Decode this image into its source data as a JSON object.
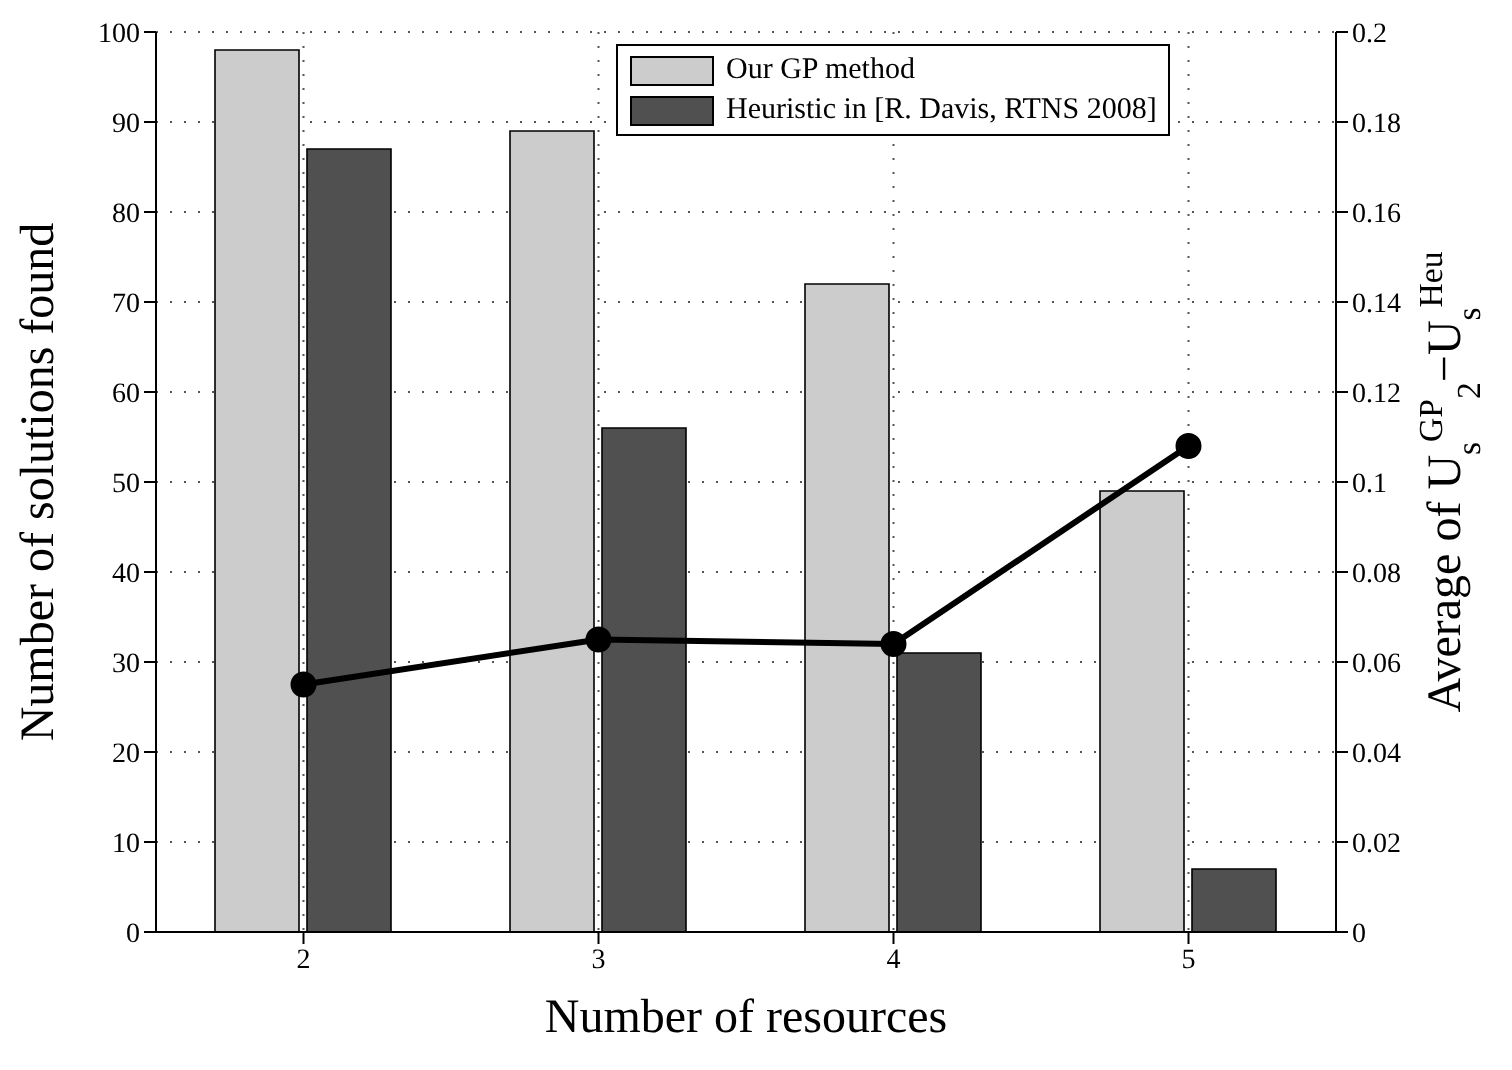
{
  "chart_data": {
    "type": "bar",
    "xlabel": "Number of resources",
    "ylabel": "Number of solutions found",
    "y2label": "Average of U$_{s}$$^{GP}$$_{2}$−U$_{s}$$^{Heu}$",
    "categories": [
      "2",
      "3",
      "4",
      "5"
    ],
    "series": [
      {
        "name": "Our GP method",
        "color": "#cccccc",
        "values": [
          98,
          89,
          72,
          49
        ]
      },
      {
        "name": "Heuristic in [R. Davis, RTNS 2008]",
        "color": "#505050",
        "values": [
          87,
          56,
          31,
          7
        ]
      },
      {
        "type": "line",
        "axis": "y2",
        "color": "#000000",
        "values": [
          0.055,
          0.065,
          0.064,
          0.108
        ]
      }
    ],
    "ylim": [
      0,
      100
    ],
    "yticks": [
      0,
      10,
      20,
      30,
      40,
      50,
      60,
      70,
      80,
      90,
      100
    ],
    "y2lim": [
      0,
      0.2
    ],
    "y2ticks": [
      0,
      0.02,
      0.04,
      0.06,
      0.08,
      0.1,
      0.12,
      0.14,
      0.16,
      0.18,
      0.2
    ],
    "grid": true,
    "legend": "top right",
    "marker": "circle",
    "line_style": "solid"
  }
}
